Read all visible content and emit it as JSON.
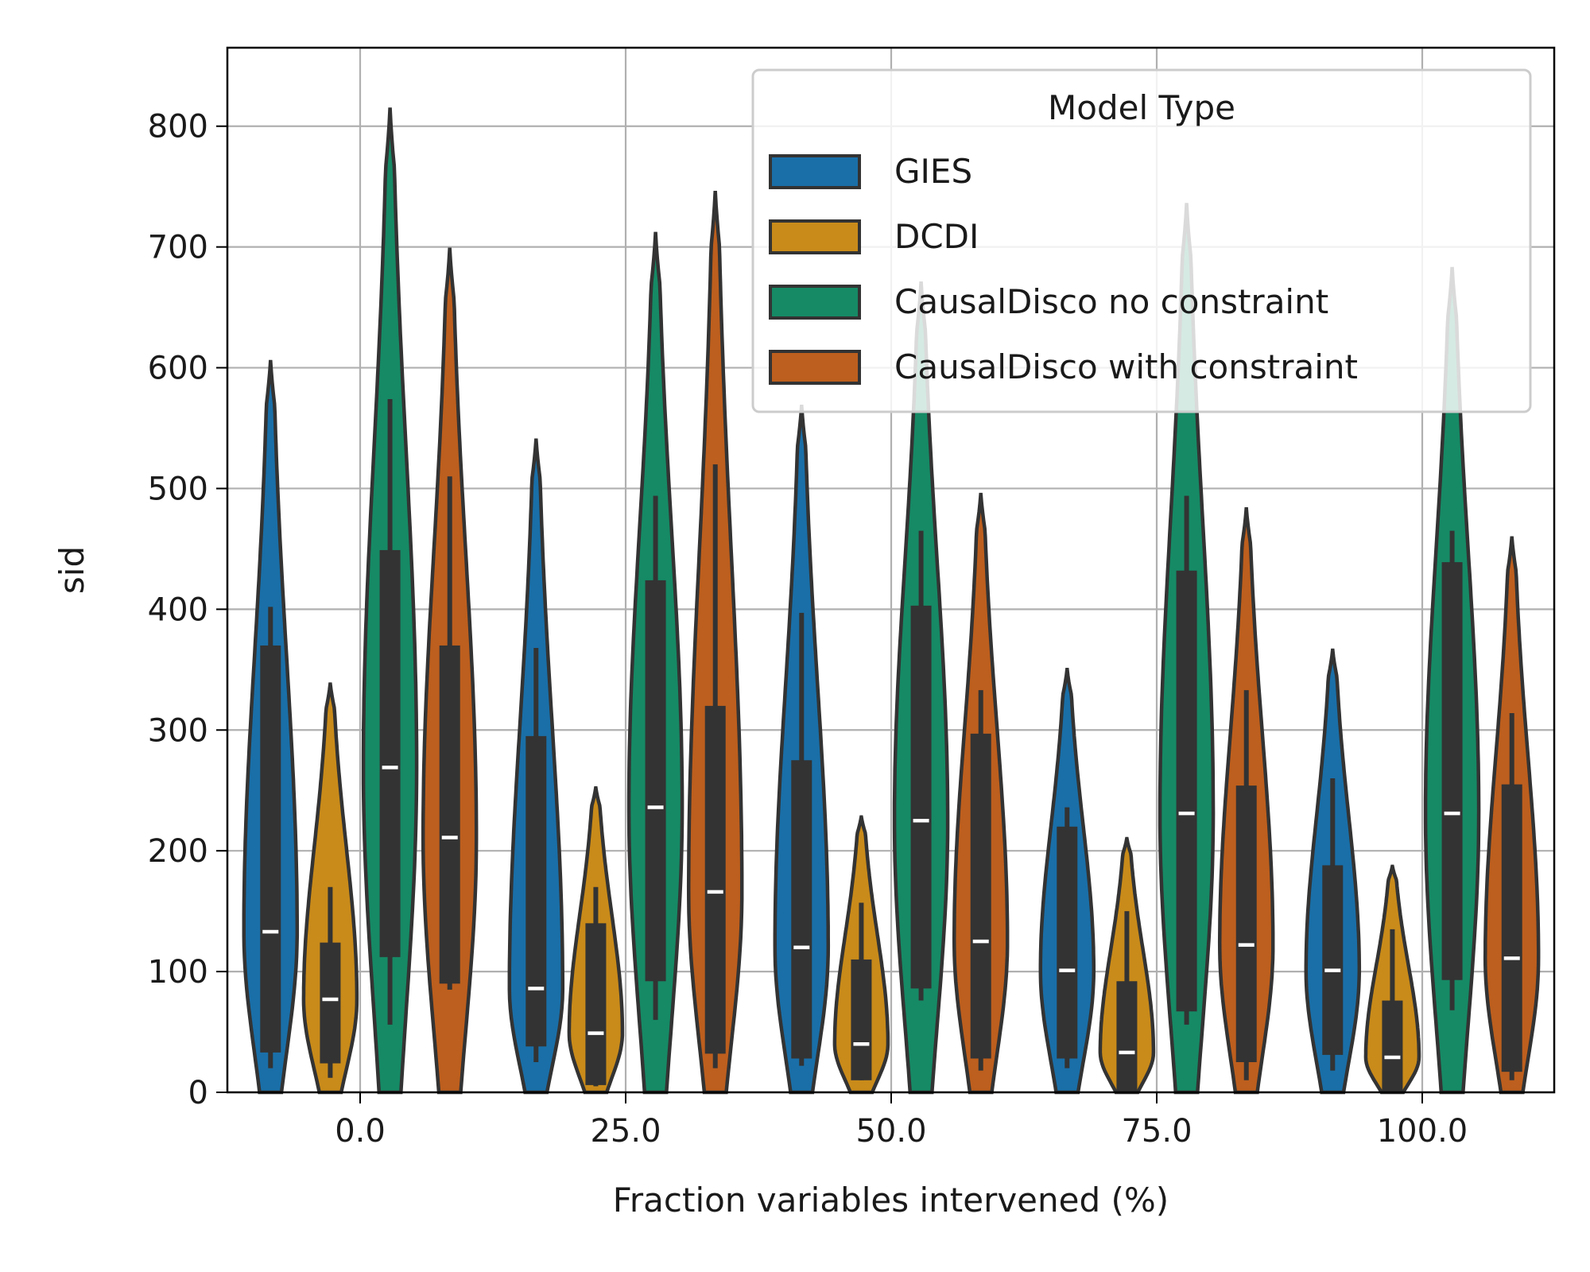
{
  "chart_data": {
    "type": "violin",
    "title": "",
    "xlabel": "Fraction variables intervened (%)",
    "ylabel": "sid",
    "ylim": [
      0,
      865
    ],
    "yticks": [
      0,
      100,
      200,
      300,
      400,
      500,
      600,
      700,
      800
    ],
    "categories": [
      "0.0",
      "25.0",
      "50.0",
      "75.0",
      "100.0"
    ],
    "grid": true,
    "legend": {
      "title": "Model Type",
      "placement": "top-right"
    },
    "series": [
      {
        "name": "GIES",
        "color": "#1a6fa8",
        "stats": [
          {
            "min": 20,
            "q1": 33,
            "median": 133,
            "q3": 370,
            "max": 402,
            "kde_top": 605
          },
          {
            "min": 25,
            "q1": 38,
            "median": 86,
            "q3": 295,
            "max": 368,
            "kde_top": 540
          },
          {
            "min": 22,
            "q1": 28,
            "median": 120,
            "q3": 275,
            "max": 397,
            "kde_top": 568
          },
          {
            "min": 20,
            "q1": 28,
            "median": 101,
            "q3": 220,
            "max": 236,
            "kde_top": 350
          },
          {
            "min": 18,
            "q1": 31,
            "median": 101,
            "q3": 188,
            "max": 260,
            "kde_top": 366
          }
        ]
      },
      {
        "name": "DCDI",
        "color": "#c98b1a",
        "stats": [
          {
            "min": 12,
            "q1": 24,
            "median": 77,
            "q3": 124,
            "max": 170,
            "kde_top": 338
          },
          {
            "min": 5,
            "q1": 6,
            "median": 49,
            "q3": 140,
            "max": 170,
            "kde_top": 252
          },
          {
            "min": 10,
            "q1": 10,
            "median": 40,
            "q3": 110,
            "max": 157,
            "kde_top": 228
          },
          {
            "min": 0,
            "q1": 0,
            "median": 33,
            "q3": 92,
            "max": 150,
            "kde_top": 210
          },
          {
            "min": 0,
            "q1": 0,
            "median": 29,
            "q3": 76,
            "max": 135,
            "kde_top": 187
          }
        ]
      },
      {
        "name": "CausalDisco no constraint",
        "color": "#168a65",
        "stats": [
          {
            "min": 56,
            "q1": 112,
            "median": 269,
            "q3": 449,
            "max": 574,
            "kde_top": 814
          },
          {
            "min": 60,
            "q1": 92,
            "median": 236,
            "q3": 424,
            "max": 494,
            "kde_top": 711
          },
          {
            "min": 76,
            "q1": 86,
            "median": 225,
            "q3": 403,
            "max": 465,
            "kde_top": 670
          },
          {
            "min": 56,
            "q1": 67,
            "median": 231,
            "q3": 432,
            "max": 494,
            "kde_top": 735
          },
          {
            "min": 68,
            "q1": 93,
            "median": 231,
            "q3": 439,
            "max": 465,
            "kde_top": 682
          }
        ]
      },
      {
        "name": "CausalDisco with constraint",
        "color": "#bd5f1e",
        "stats": [
          {
            "min": 85,
            "q1": 90,
            "median": 211,
            "q3": 370,
            "max": 510,
            "kde_top": 698
          },
          {
            "min": 20,
            "q1": 32,
            "median": 166,
            "q3": 320,
            "max": 520,
            "kde_top": 745
          },
          {
            "min": 18,
            "q1": 28,
            "median": 125,
            "q3": 297,
            "max": 333,
            "kde_top": 495
          },
          {
            "min": 10,
            "q1": 25,
            "median": 122,
            "q3": 254,
            "max": 333,
            "kde_top": 483
          },
          {
            "min": 10,
            "q1": 17,
            "median": 111,
            "q3": 255,
            "max": 314,
            "kde_top": 459
          }
        ]
      }
    ]
  }
}
